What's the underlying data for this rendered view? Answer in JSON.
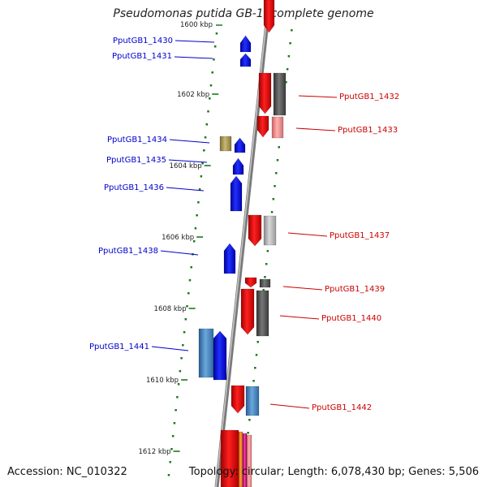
{
  "title": "Pseudomonas putida GB-1, complete genome",
  "footer": {
    "accession": "Accession: NC_010322",
    "summary": "Topology: circular; Length: 6,078,430 bp; Genes: 5,506"
  },
  "top_clipped_label": "1600 kbp",
  "kbp_labels": [
    "1602 kbp",
    "1604 kbp",
    "1606 kbp",
    "1608 kbp",
    "1610 kbp",
    "1612 kbp"
  ],
  "genes_left": [
    {
      "label": "PputGB1_1430",
      "color": "#0000cc"
    },
    {
      "label": "PputGB1_1431",
      "color": "#0000cc"
    },
    {
      "label": "PputGB1_1434",
      "color": "#0000cc"
    },
    {
      "label": "PputGB1_1435",
      "color": "#0000cc"
    },
    {
      "label": "PputGB1_1436",
      "color": "#0000cc"
    },
    {
      "label": "PputGB1_1438",
      "color": "#0000cc"
    },
    {
      "label": "PputGB1_1441",
      "color": "#0000cc"
    }
  ],
  "genes_right": [
    {
      "label": "PputGB1_1432",
      "color": "#cc0000"
    },
    {
      "label": "PputGB1_1433",
      "color": "#cc0000"
    },
    {
      "label": "PputGB1_1437",
      "color": "#cc0000"
    },
    {
      "label": "PputGB1_1439",
      "color": "#cc0000"
    },
    {
      "label": "PputGB1_1440",
      "color": "#cc0000"
    },
    {
      "label": "PputGB1_1442",
      "color": "#cc0000"
    }
  ],
  "colors": {
    "backbone": "#8a8a8a",
    "ticks": "#1a7a1a",
    "forward_blue": "#0a14f0",
    "reverse_red": "#e61010",
    "steel_blue": "#4a8ac0",
    "dark_gray": "#5a5a5a",
    "light_gray": "#b8b8b8",
    "pink": "#f09090",
    "olive": "#b0a060"
  }
}
